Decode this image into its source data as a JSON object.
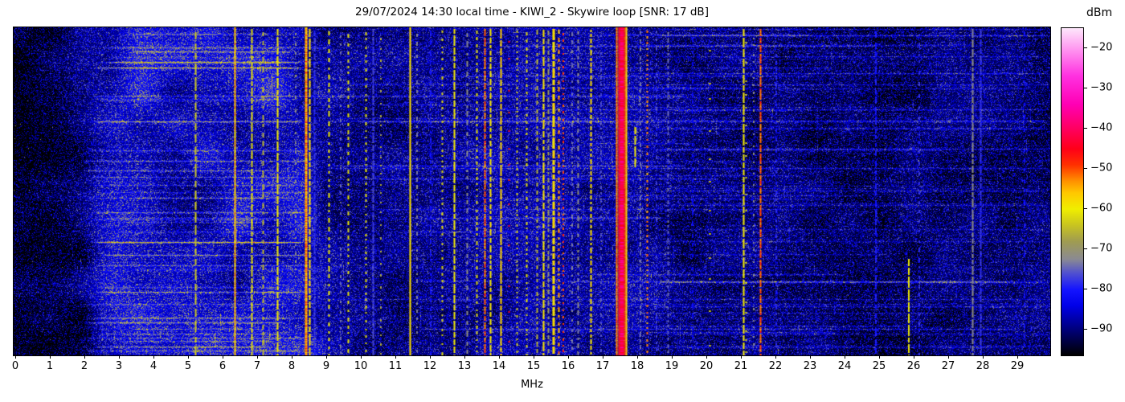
{
  "title": "29/07/2024 14:30 local time - KIWI_2 - Skywire loop [SNR: 17 dB]",
  "chart_data": {
    "type": "heatmap",
    "subtype": "radio-spectrum-waterfall",
    "title": "29/07/2024 14:30 local time - KIWI_2 - Skywire loop [SNR: 17 dB]",
    "xlabel": "MHz",
    "x_range_mhz": [
      0,
      30
    ],
    "x_ticks": [
      0,
      1,
      2,
      3,
      4,
      5,
      6,
      7,
      8,
      9,
      10,
      11,
      12,
      13,
      14,
      15,
      16,
      17,
      18,
      19,
      20,
      21,
      22,
      23,
      24,
      25,
      26,
      27,
      28,
      29
    ],
    "colorbar": {
      "unit_label": "dBm",
      "ticks": [
        -20,
        -30,
        -40,
        -50,
        -60,
        -70,
        -80,
        -90
      ],
      "vmax": -15.0,
      "vmin": -96.4
    },
    "colormap_stops": [
      [
        0.0,
        "#000000"
      ],
      [
        0.079,
        "#00007a"
      ],
      [
        0.152,
        "#0000e8"
      ],
      [
        0.201,
        "#1414ff"
      ],
      [
        0.251,
        "#5050d0"
      ],
      [
        0.294,
        "#8a8a92"
      ],
      [
        0.349,
        "#a09c50"
      ],
      [
        0.398,
        "#c8c420"
      ],
      [
        0.447,
        "#f0ee00"
      ],
      [
        0.496,
        "#ffc800"
      ],
      [
        0.533,
        "#ff9000"
      ],
      [
        0.582,
        "#ff3000"
      ],
      [
        0.631,
        "#ff0018"
      ],
      [
        0.693,
        "#ff0060"
      ],
      [
        0.767,
        "#ff00b4"
      ],
      [
        0.853,
        "#ff30e0"
      ],
      [
        0.926,
        "#ff8aee"
      ],
      [
        1.0,
        "#fde7fb"
      ]
    ],
    "noise_floor_profile_dbm": [
      [
        0,
        -95.5
      ],
      [
        0.8,
        -94
      ],
      [
        1.5,
        -92.5
      ],
      [
        2.0,
        -90
      ],
      [
        2.4,
        -86.5
      ],
      [
        3.0,
        -83.5
      ],
      [
        3.6,
        -82.5
      ],
      [
        4.4,
        -83.5
      ],
      [
        5.0,
        -83.5
      ],
      [
        5.6,
        -84
      ],
      [
        6.2,
        -83
      ],
      [
        7.0,
        -82
      ],
      [
        7.6,
        -81.5
      ],
      [
        8.2,
        -82
      ],
      [
        8.6,
        -84.5
      ],
      [
        9.0,
        -86.5
      ],
      [
        9.6,
        -87.5
      ],
      [
        10.5,
        -88
      ],
      [
        11.5,
        -88
      ],
      [
        12.3,
        -88
      ],
      [
        13.0,
        -87
      ],
      [
        13.6,
        -86
      ],
      [
        14.3,
        -86
      ],
      [
        15.0,
        -85.5
      ],
      [
        15.8,
        -86
      ],
      [
        16.5,
        -86.5
      ],
      [
        17.2,
        -86
      ],
      [
        18.0,
        -86
      ],
      [
        18.6,
        -88
      ],
      [
        19.5,
        -89.5
      ],
      [
        20.6,
        -88.5
      ],
      [
        21.5,
        -88
      ],
      [
        22.3,
        -89.5
      ],
      [
        23.5,
        -90
      ],
      [
        25.0,
        -90.5
      ],
      [
        26.5,
        -90
      ],
      [
        28.0,
        -89.5
      ],
      [
        29.0,
        -89.5
      ],
      [
        30.0,
        -89.5
      ]
    ],
    "signals": [
      {
        "f": 2.5,
        "w": 1,
        "level": -75,
        "duty": 0.25,
        "seg": 4
      },
      {
        "f": 3.53,
        "w": 1,
        "level": -72,
        "duty": 0.18,
        "seg": 3
      },
      {
        "f": 4.65,
        "w": 1,
        "level": -80,
        "duty": 0.3,
        "seg": 4
      },
      {
        "f": 5.23,
        "w": 2,
        "level": -64,
        "duty": 0.8,
        "seg": 14
      },
      {
        "f": 6.37,
        "w": 2.5,
        "level": -56,
        "duty": 1,
        "jitter": 4,
        "hot": true
      },
      {
        "f": 6.85,
        "w": 2,
        "level": -62,
        "duty": 0.92
      },
      {
        "f": 7.17,
        "w": 1.5,
        "level": -66,
        "duty": 0.6,
        "seg": 8
      },
      {
        "f": 7.6,
        "w": 2,
        "level": -60,
        "duty": 0.92
      },
      {
        "f": 8.1,
        "w": 1,
        "level": -71,
        "duty": 0.35,
        "seg": 5
      },
      {
        "f": 8.4,
        "w": 3,
        "level": -54,
        "duty": 1,
        "jitter": 4,
        "hot": true
      },
      {
        "f": 8.53,
        "w": 2.5,
        "level": -58,
        "duty": 0.96
      },
      {
        "f": 8.66,
        "w": 1.5,
        "level": -78,
        "duty": 0.8
      },
      {
        "f": 9.07,
        "w": 2,
        "level": -61,
        "duty": 0.6,
        "seg": 7
      },
      {
        "f": 9.4,
        "w": 1,
        "level": -74,
        "duty": 0.45,
        "seg": 6
      },
      {
        "f": 9.63,
        "w": 2,
        "level": -62,
        "duty": 0.55,
        "seg": 6
      },
      {
        "f": 10.16,
        "w": 2,
        "level": -62,
        "duty": 0.5,
        "seg": 5
      },
      {
        "f": 10.35,
        "w": 1.5,
        "level": -77,
        "duty": 0.9
      },
      {
        "f": 10.56,
        "w": 1,
        "level": -67,
        "duty": 0.35,
        "seg": 5
      },
      {
        "f": 11.44,
        "w": 2.5,
        "level": -58,
        "duty": 0.97
      },
      {
        "f": 11.62,
        "w": 1,
        "level": -73,
        "duty": 0.5,
        "seg": 6
      },
      {
        "f": 12.0,
        "w": 1,
        "level": -80,
        "duty": 0.6,
        "seg": 8
      },
      {
        "f": 12.37,
        "w": 2,
        "level": -63,
        "duty": 0.45,
        "seg": 5
      },
      {
        "f": 12.72,
        "w": 1.5,
        "level": -60,
        "duty": 0.88
      },
      {
        "f": 13.07,
        "w": 1.5,
        "level": -72,
        "duty": 0.6,
        "seg": 8
      },
      {
        "f": 13.37,
        "w": 2,
        "level": -62,
        "duty": 0.55,
        "seg": 5
      },
      {
        "f": 13.6,
        "w": 2.5,
        "level": -52,
        "duty": 0.96,
        "jitter": 4,
        "hot": true
      },
      {
        "f": 13.76,
        "w": 2,
        "level": -59,
        "duty": 0.8,
        "seg": 8
      },
      {
        "f": 14.05,
        "w": 2.5,
        "level": -57,
        "duty": 0.96
      },
      {
        "f": 14.28,
        "w": 2,
        "level": -47,
        "duty": 0.1,
        "seg": 3,
        "jitter": 3
      },
      {
        "f": 14.52,
        "w": 1.5,
        "level": -64,
        "duty": 0.5,
        "seg": 4
      },
      {
        "f": 14.8,
        "w": 2,
        "level": -62,
        "duty": 0.5,
        "seg": 5
      },
      {
        "f": 15.1,
        "w": 1.5,
        "level": -66,
        "duty": 0.6,
        "seg": 6
      },
      {
        "f": 15.3,
        "w": 2.5,
        "level": -59,
        "duty": 0.85
      },
      {
        "f": 15.42,
        "w": 1.5,
        "level": -70,
        "duty": 0.7,
        "seg": 6
      },
      {
        "f": 15.56,
        "w": 3,
        "level": -58,
        "duty": 0.92
      },
      {
        "f": 15.74,
        "w": 1.5,
        "level": -54,
        "duty": 0.6,
        "seg": 6,
        "jitter": 4
      },
      {
        "f": 15.86,
        "w": 1,
        "level": -49,
        "duty": 0.45,
        "seg": 4,
        "jitter": 3
      },
      {
        "f": 16.1,
        "w": 1,
        "level": -74,
        "duty": 0.5,
        "seg": 6
      },
      {
        "f": 16.3,
        "w": 1.5,
        "level": -72,
        "duty": 0.6,
        "seg": 7
      },
      {
        "f": 16.67,
        "w": 2,
        "level": -58,
        "duty": 0.75,
        "seg": 6
      },
      {
        "f": 16.95,
        "w": 1,
        "level": -76,
        "duty": 0.5,
        "seg": 6
      },
      {
        "f": 17.55,
        "w": 13,
        "level": -74,
        "duty": 1,
        "alpha": 0.3
      },
      {
        "f": 17.4,
        "w": 2,
        "level": -52,
        "duty": 1,
        "jitter": 3
      },
      {
        "f": 17.47,
        "w": 2,
        "level": -46,
        "duty": 1,
        "jitter": 3
      },
      {
        "f": 17.55,
        "w": 5,
        "level": -41,
        "duty": 1,
        "jitter": 4,
        "hot": true
      },
      {
        "f": 17.63,
        "w": 2,
        "level": -48,
        "duty": 1,
        "jitter": 3
      },
      {
        "f": 17.68,
        "w": 2,
        "level": -56,
        "duty": 1
      },
      {
        "f": 17.95,
        "w": 1.5,
        "level": -60,
        "duty": 0.9,
        "y0": 0.3,
        "y1": 0.43
      },
      {
        "f": 18.07,
        "w": 1,
        "level": -74,
        "duty": 0.6,
        "seg": 6
      },
      {
        "f": 18.3,
        "w": 1.5,
        "level": -53,
        "duty": 0.5,
        "seg": 4,
        "jitter": 3
      },
      {
        "f": 18.55,
        "w": 1,
        "level": -77,
        "duty": 0.5,
        "seg": 6
      },
      {
        "f": 18.9,
        "w": 1.5,
        "level": -75,
        "duty": 0.6,
        "seg": 6
      },
      {
        "f": 19.6,
        "w": 1,
        "level": -82,
        "duty": 0.5,
        "seg": 8
      },
      {
        "f": 20.1,
        "w": 2,
        "level": -59,
        "duty": 0.1,
        "seg": 3
      },
      {
        "f": 21.07,
        "w": 2,
        "level": -60,
        "duty": 0.96
      },
      {
        "f": 21.16,
        "w": 1.5,
        "level": -62,
        "duty": 0.15,
        "seg": 3
      },
      {
        "f": 21.37,
        "w": 1,
        "level": -72,
        "duty": 0.35,
        "seg": 5
      },
      {
        "f": 21.56,
        "w": 1.5,
        "level": -51,
        "duty": 0.92,
        "jitter": 4
      },
      {
        "f": 22.0,
        "w": 1,
        "level": -79,
        "duty": 0.5,
        "seg": 7
      },
      {
        "f": 24.9,
        "w": 1,
        "level": -80,
        "duty": 0.7,
        "seg": 9
      },
      {
        "f": 25.84,
        "w": 1,
        "level": -61,
        "duty": 0.92,
        "y0": 0.7,
        "y1": 1
      },
      {
        "f": 26.15,
        "w": 1,
        "level": -78,
        "duty": 0.5,
        "seg": 7
      },
      {
        "f": 27.7,
        "w": 1.5,
        "level": -72,
        "duty": 0.88
      },
      {
        "f": 27.95,
        "w": 1.5,
        "level": -78,
        "duty": 0.9
      },
      {
        "f": 29.2,
        "w": 1,
        "level": -81,
        "duty": 0.5,
        "seg": 8
      }
    ],
    "time_streaks": [
      [
        25,
        2.5,
        9.2,
        10
      ],
      [
        43,
        2.3,
        9.0,
        8
      ],
      [
        50,
        2.2,
        8.4,
        15
      ],
      [
        85,
        2.2,
        19.5,
        9
      ],
      [
        117,
        2.2,
        8.4,
        13
      ],
      [
        153,
        2.0,
        8.5,
        8
      ],
      [
        172,
        9.0,
        19.5,
        9
      ],
      [
        196,
        2.2,
        8.5,
        7
      ],
      [
        230,
        2.2,
        8.4,
        10
      ],
      [
        267,
        2.2,
        8.4,
        19
      ],
      [
        267,
        6.3,
        7.9,
        6
      ],
      [
        296,
        2.3,
        8.5,
        8
      ],
      [
        329,
        2.3,
        8.4,
        13
      ],
      [
        361,
        2.2,
        8.5,
        9
      ],
      [
        386,
        2.0,
        8.6,
        8
      ],
      [
        36,
        18.6,
        30,
        6
      ],
      [
        71,
        18.6,
        30,
        5
      ],
      [
        116,
        9,
        30,
        5
      ],
      [
        151,
        18.6,
        30,
        6
      ],
      [
        175,
        9,
        30,
        6
      ],
      [
        200,
        18.6,
        30,
        5
      ],
      [
        221,
        18.6,
        30,
        6
      ],
      [
        251,
        18.6,
        30,
        5
      ],
      [
        266,
        18.6,
        30,
        5
      ],
      [
        316,
        18.6,
        30,
        5
      ],
      [
        338,
        9,
        30,
        5
      ],
      [
        381,
        18.6,
        30,
        6
      ],
      [
        396,
        18.6,
        30,
        5
      ]
    ],
    "seed": 20240729
  }
}
